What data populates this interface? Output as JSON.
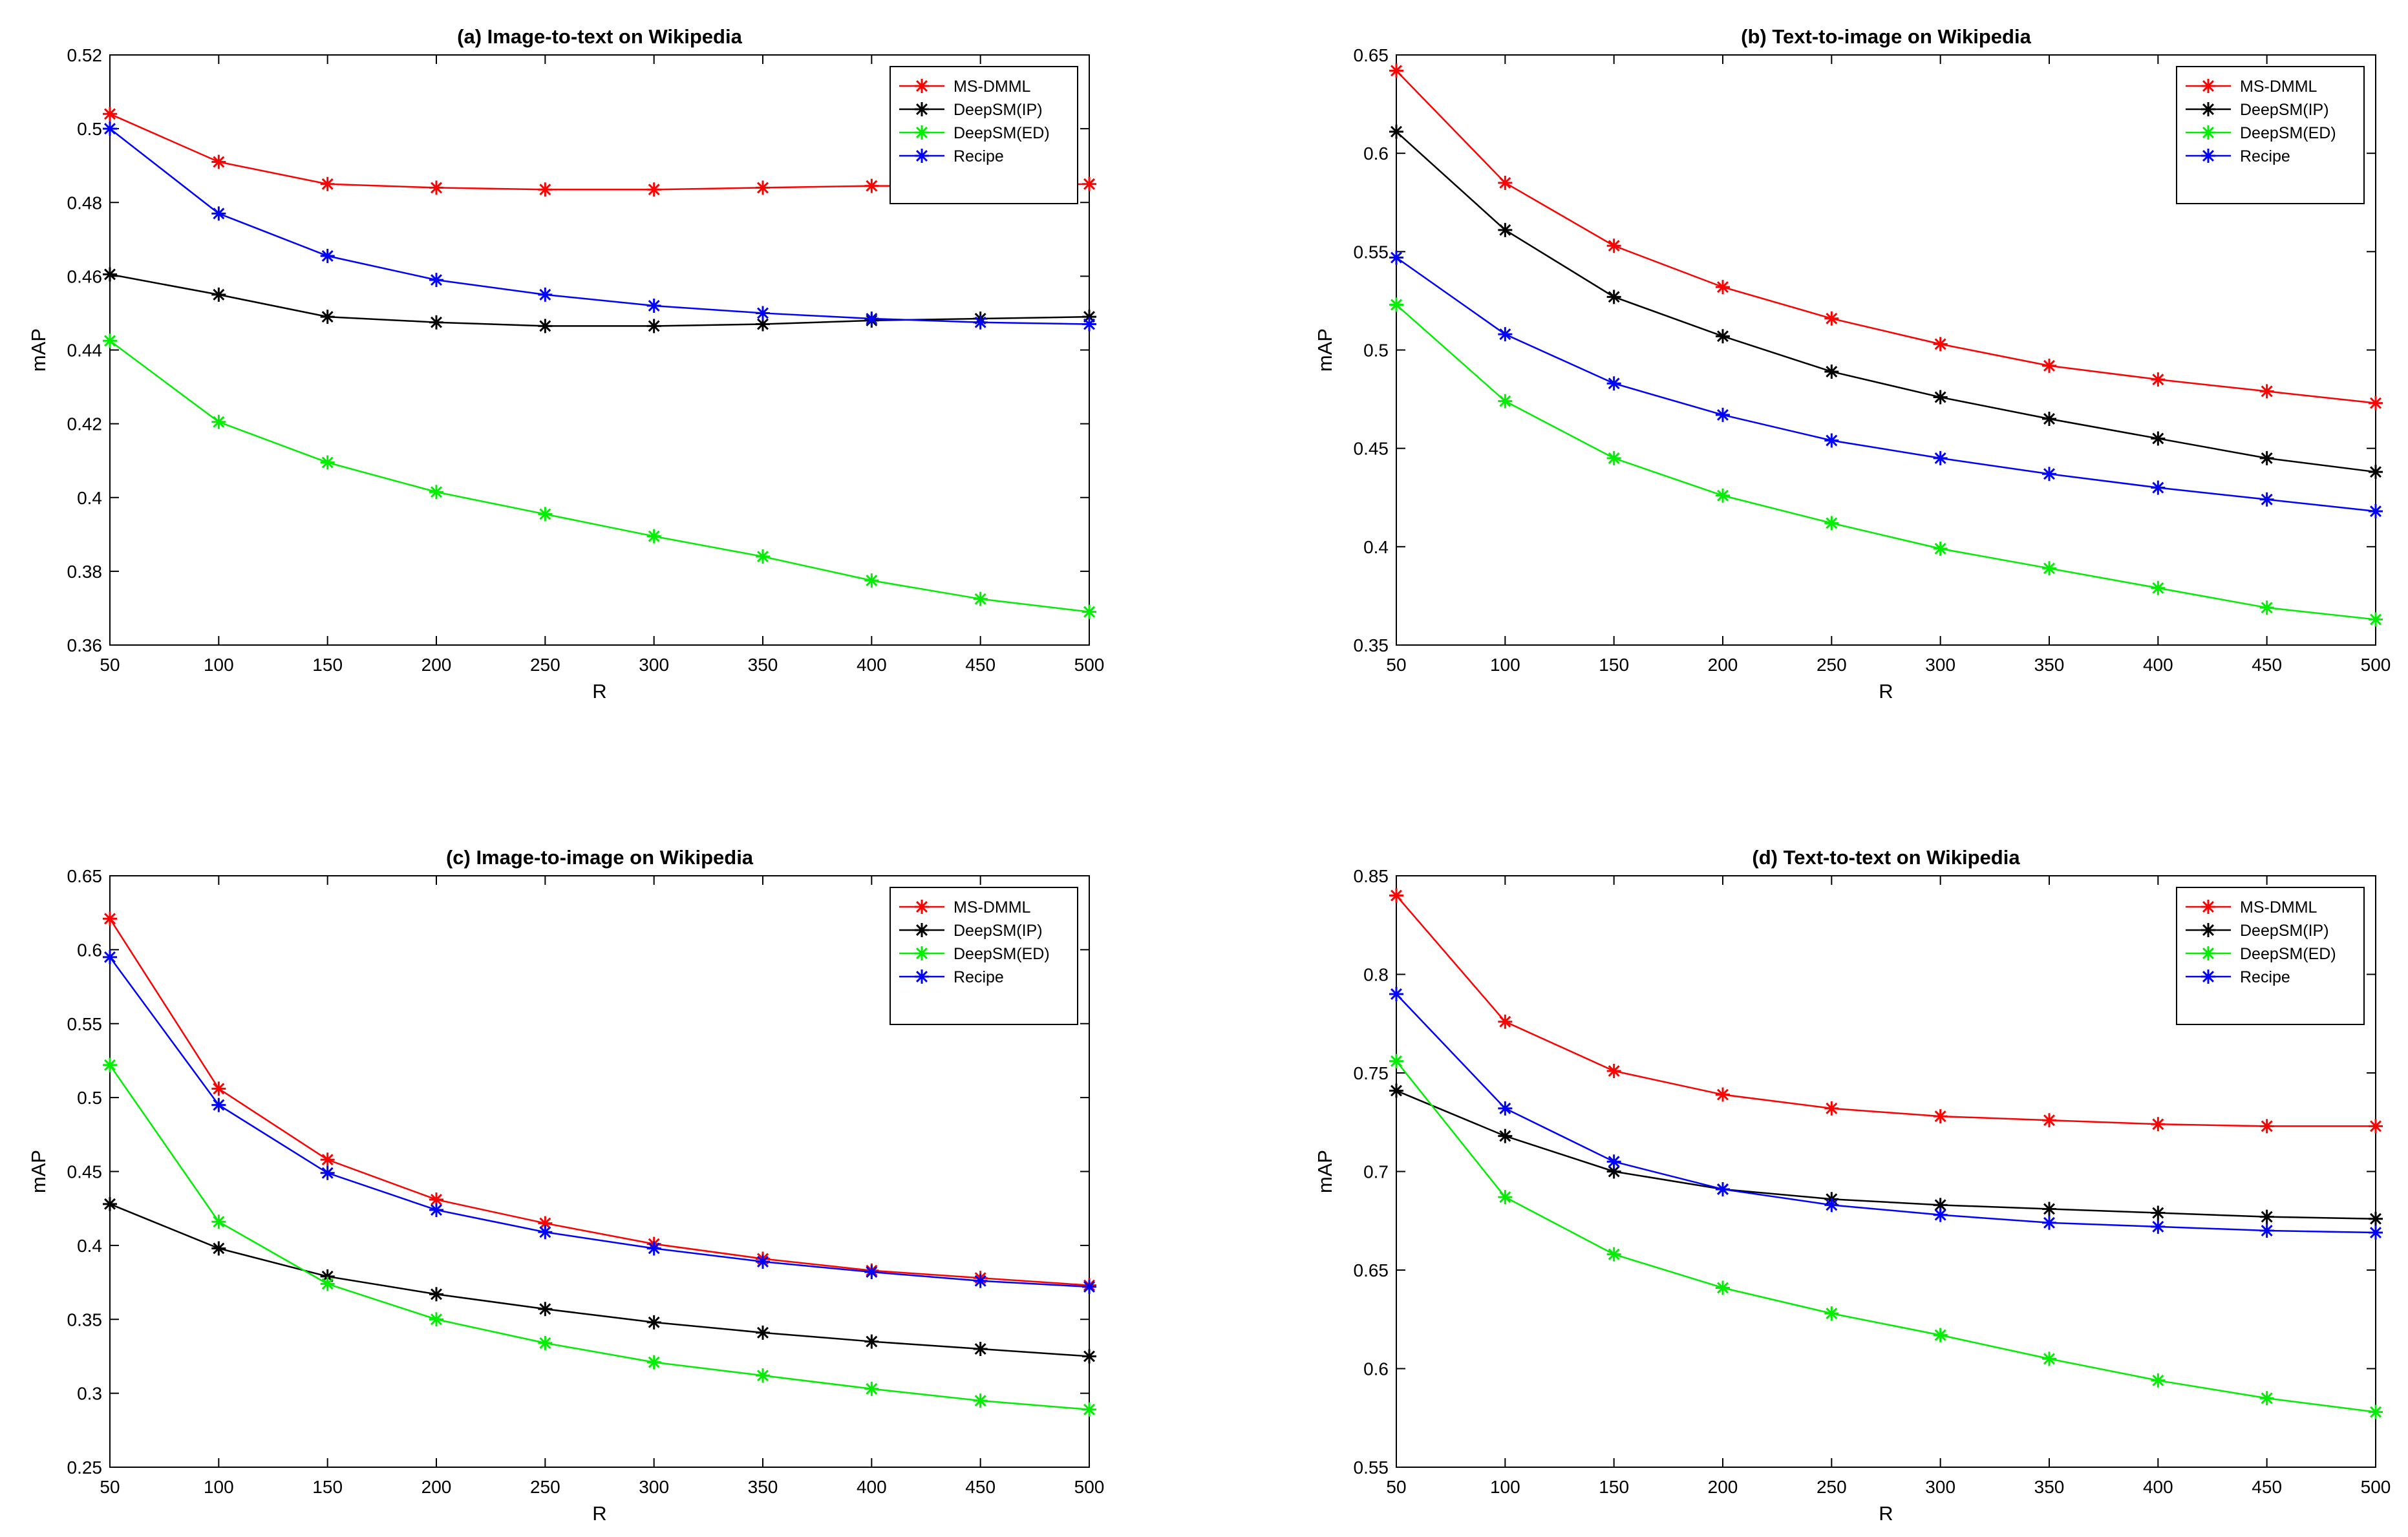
{
  "chart_data": [
    {
      "type": "line",
      "title": "(a) Image-to-text on Wikipedia",
      "xlabel": "R",
      "ylabel": "mAP",
      "x": [
        50,
        100,
        150,
        200,
        250,
        300,
        350,
        400,
        450,
        500
      ],
      "xlim": [
        50,
        500
      ],
      "ylim": [
        0.36,
        0.52
      ],
      "yticks": [
        0.36,
        0.38,
        0.4,
        0.42,
        0.44,
        0.46,
        0.48,
        0.5,
        0.52
      ],
      "ytick_labels": [
        "0.36",
        "0.38",
        "0.4",
        "0.42",
        "0.44",
        "0.46",
        "0.48",
        "0.5",
        "0.52"
      ],
      "legend": "top-right",
      "series": [
        {
          "name": "MS-DMML",
          "color": "#ff0000",
          "values": [
            0.504,
            0.491,
            0.485,
            0.484,
            0.4835,
            0.4835,
            0.484,
            0.4845,
            0.4845,
            0.485
          ]
        },
        {
          "name": "DeepSM(IP)",
          "color": "#000000",
          "values": [
            0.4605,
            0.455,
            0.449,
            0.4475,
            0.4465,
            0.4465,
            0.447,
            0.448,
            0.4485,
            0.449
          ]
        },
        {
          "name": "DeepSM(ED)",
          "color": "#00ee00",
          "values": [
            0.4425,
            0.4205,
            0.4095,
            0.4015,
            0.3955,
            0.3895,
            0.384,
            0.3775,
            0.3725,
            0.369
          ]
        },
        {
          "name": "Recipe",
          "color": "#0000ff",
          "values": [
            0.5,
            0.477,
            0.4655,
            0.459,
            0.455,
            0.452,
            0.45,
            0.4485,
            0.4475,
            0.447
          ]
        }
      ]
    },
    {
      "type": "line",
      "title": "(b) Text-to-image on Wikipedia",
      "xlabel": "R",
      "ylabel": "mAP",
      "x": [
        50,
        100,
        150,
        200,
        250,
        300,
        350,
        400,
        450,
        500
      ],
      "xlim": [
        50,
        500
      ],
      "ylim": [
        0.35,
        0.65
      ],
      "yticks": [
        0.35,
        0.4,
        0.45,
        0.5,
        0.55,
        0.6,
        0.65
      ],
      "ytick_labels": [
        "0.35",
        "0.4",
        "0.45",
        "0.5",
        "0.55",
        "0.6",
        "0.65"
      ],
      "legend": "top-right",
      "series": [
        {
          "name": "MS-DMML",
          "color": "#ff0000",
          "values": [
            0.642,
            0.585,
            0.553,
            0.532,
            0.516,
            0.503,
            0.492,
            0.485,
            0.479,
            0.473
          ]
        },
        {
          "name": "DeepSM(IP)",
          "color": "#000000",
          "values": [
            0.611,
            0.561,
            0.527,
            0.507,
            0.489,
            0.476,
            0.465,
            0.455,
            0.445,
            0.438
          ]
        },
        {
          "name": "DeepSM(ED)",
          "color": "#00ee00",
          "values": [
            0.523,
            0.474,
            0.445,
            0.426,
            0.412,
            0.399,
            0.389,
            0.379,
            0.369,
            0.363
          ]
        },
        {
          "name": "Recipe",
          "color": "#0000ff",
          "values": [
            0.547,
            0.508,
            0.483,
            0.467,
            0.454,
            0.445,
            0.437,
            0.43,
            0.424,
            0.418
          ]
        }
      ]
    },
    {
      "type": "line",
      "title": "(c) Image-to-image on Wikipedia",
      "xlabel": "R",
      "ylabel": "mAP",
      "x": [
        50,
        100,
        150,
        200,
        250,
        300,
        350,
        400,
        450,
        500
      ],
      "xlim": [
        50,
        500
      ],
      "ylim": [
        0.25,
        0.65
      ],
      "yticks": [
        0.25,
        0.3,
        0.35,
        0.4,
        0.45,
        0.5,
        0.55,
        0.6,
        0.65
      ],
      "ytick_labels": [
        "0.25",
        "0.3",
        "0.35",
        "0.4",
        "0.45",
        "0.5",
        "0.55",
        "0.6",
        "0.65"
      ],
      "legend": "top-right",
      "series": [
        {
          "name": "MS-DMML",
          "color": "#ff0000",
          "values": [
            0.621,
            0.506,
            0.458,
            0.431,
            0.415,
            0.401,
            0.391,
            0.383,
            0.378,
            0.373
          ]
        },
        {
          "name": "DeepSM(IP)",
          "color": "#000000",
          "values": [
            0.428,
            0.398,
            0.379,
            0.367,
            0.357,
            0.348,
            0.341,
            0.335,
            0.33,
            0.325
          ]
        },
        {
          "name": "DeepSM(ED)",
          "color": "#00ee00",
          "values": [
            0.522,
            0.416,
            0.374,
            0.35,
            0.334,
            0.321,
            0.312,
            0.303,
            0.295,
            0.289
          ]
        },
        {
          "name": "Recipe",
          "color": "#0000ff",
          "values": [
            0.595,
            0.495,
            0.449,
            0.424,
            0.409,
            0.398,
            0.389,
            0.382,
            0.376,
            0.372
          ]
        }
      ]
    },
    {
      "type": "line",
      "title": "(d) Text-to-text on Wikipedia",
      "xlabel": "R",
      "ylabel": "mAP",
      "x": [
        50,
        100,
        150,
        200,
        250,
        300,
        350,
        400,
        450,
        500
      ],
      "xlim": [
        50,
        500
      ],
      "ylim": [
        0.55,
        0.85
      ],
      "yticks": [
        0.55,
        0.6,
        0.65,
        0.7,
        0.75,
        0.8,
        0.85
      ],
      "ytick_labels": [
        "0.55",
        "0.6",
        "0.65",
        "0.7",
        "0.75",
        "0.8",
        "0.85"
      ],
      "legend": "top-right",
      "series": [
        {
          "name": "MS-DMML",
          "color": "#ff0000",
          "values": [
            0.84,
            0.776,
            0.751,
            0.739,
            0.732,
            0.728,
            0.726,
            0.724,
            0.723,
            0.723
          ]
        },
        {
          "name": "DeepSM(IP)",
          "color": "#000000",
          "values": [
            0.741,
            0.718,
            0.7,
            0.691,
            0.686,
            0.683,
            0.681,
            0.679,
            0.677,
            0.676
          ]
        },
        {
          "name": "DeepSM(ED)",
          "color": "#00ee00",
          "values": [
            0.756,
            0.687,
            0.658,
            0.641,
            0.628,
            0.617,
            0.605,
            0.594,
            0.585,
            0.578
          ]
        },
        {
          "name": "Recipe",
          "color": "#0000ff",
          "values": [
            0.79,
            0.732,
            0.705,
            0.691,
            0.683,
            0.678,
            0.674,
            0.672,
            0.67,
            0.669
          ]
        }
      ]
    }
  ]
}
